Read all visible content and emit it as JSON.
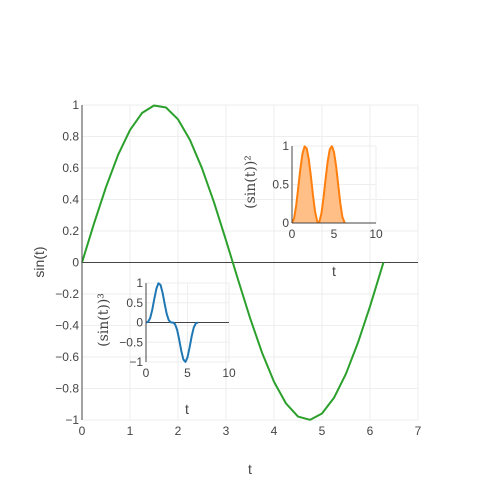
{
  "chart_data": [
    {
      "type": "line",
      "role": "main",
      "xlabel": "t",
      "ylabel": "sin(t)",
      "xlim": [
        0,
        7
      ],
      "ylim": [
        -1,
        1
      ],
      "xticks": [
        "0",
        "1",
        "2",
        "3",
        "4",
        "5",
        "6",
        "7"
      ],
      "yticks": [
        "−1",
        "−0.8",
        "−0.6",
        "−0.4",
        "−0.2",
        "0",
        "0.2",
        "0.4",
        "0.6",
        "0.8",
        "1"
      ],
      "grid": true,
      "series": [
        {
          "color": "#2ca02c",
          "fill": false,
          "x": [
            0,
            0.25,
            0.5,
            0.75,
            1,
            1.25,
            1.5,
            1.75,
            2,
            2.25,
            2.5,
            2.75,
            3,
            3.25,
            3.5,
            3.75,
            4,
            4.25,
            4.5,
            4.75,
            5,
            5.25,
            5.5,
            5.75,
            6,
            6.28
          ],
          "y": [
            0,
            0.247,
            0.479,
            0.682,
            0.841,
            0.949,
            0.997,
            0.984,
            0.909,
            0.778,
            0.598,
            0.382,
            0.141,
            -0.108,
            -0.351,
            -0.572,
            -0.757,
            -0.895,
            -0.978,
            -0.999,
            -0.959,
            -0.859,
            -0.706,
            -0.508,
            -0.279,
            0
          ]
        }
      ]
    },
    {
      "type": "area",
      "role": "inset-top-right",
      "xlabel": "t",
      "ylabel": "(sin(t))²",
      "xlim": [
        0,
        10
      ],
      "ylim": [
        0,
        1
      ],
      "xticks": [
        "0",
        "5",
        "10"
      ],
      "yticks": [
        "0",
        "0.5",
        "1"
      ],
      "grid": true,
      "series": [
        {
          "color": "#ff7f0e",
          "fillcolor": "#ffbf87",
          "fill": true,
          "x": [
            0,
            0.25,
            0.5,
            0.75,
            1,
            1.25,
            1.5,
            1.75,
            2,
            2.25,
            2.5,
            2.75,
            3,
            3.25,
            3.5,
            3.75,
            4,
            4.25,
            4.5,
            4.75,
            5,
            5.25,
            5.5,
            5.75,
            6,
            6.28
          ],
          "y": [
            0,
            0.061,
            0.23,
            0.465,
            0.708,
            0.9,
            0.995,
            0.968,
            0.827,
            0.605,
            0.358,
            0.146,
            0.02,
            0.012,
            0.123,
            0.327,
            0.573,
            0.801,
            0.957,
            0.998,
            0.92,
            0.738,
            0.498,
            0.258,
            0.078,
            0
          ]
        }
      ]
    },
    {
      "type": "line",
      "role": "inset-bottom-left",
      "xlabel": "t",
      "ylabel": "(sin(t))³",
      "xlim": [
        0,
        10
      ],
      "ylim": [
        -1,
        1
      ],
      "xticks": [
        "0",
        "5",
        "10"
      ],
      "yticks": [
        "−1",
        "−0.5",
        "0",
        "0.5",
        "1"
      ],
      "grid": true,
      "series": [
        {
          "color": "#1f77b4",
          "fill": false,
          "x": [
            0,
            0.25,
            0.5,
            0.75,
            1,
            1.25,
            1.5,
            1.75,
            2,
            2.25,
            2.5,
            2.75,
            3,
            3.25,
            3.5,
            3.75,
            4,
            4.25,
            4.5,
            4.75,
            5,
            5.25,
            5.5,
            5.75,
            6,
            6.28
          ],
          "y": [
            0,
            0.015,
            0.11,
            0.317,
            0.596,
            0.854,
            0.993,
            0.953,
            0.751,
            0.471,
            0.214,
            0.056,
            0.003,
            -0.001,
            -0.043,
            -0.187,
            -0.434,
            -0.717,
            -0.935,
            -0.997,
            -0.882,
            -0.634,
            -0.352,
            -0.131,
            -0.022,
            0
          ]
        }
      ]
    }
  ]
}
